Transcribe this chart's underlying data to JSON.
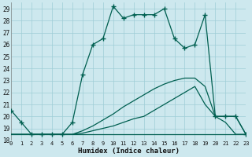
{
  "xlabel": "Humidex (Indice chaleur)",
  "xlim": [
    0,
    23
  ],
  "ylim": [
    18,
    29.5
  ],
  "yticks": [
    18,
    19,
    20,
    21,
    22,
    23,
    24,
    25,
    26,
    27,
    28,
    29
  ],
  "xticks": [
    0,
    1,
    2,
    3,
    4,
    5,
    6,
    7,
    8,
    9,
    10,
    11,
    12,
    13,
    14,
    15,
    16,
    17,
    18,
    19,
    20,
    21,
    22,
    23
  ],
  "bg_color": "#cde8ee",
  "grid_color": "#9ecdd6",
  "line_color": "#005f50",
  "lines": [
    {
      "x": [
        0,
        1,
        2,
        3,
        4,
        5,
        6,
        7,
        8,
        9,
        10,
        11,
        12,
        13,
        14,
        15,
        16,
        17,
        18,
        19,
        20,
        21,
        22,
        23
      ],
      "y": [
        20.5,
        19.5,
        18.5,
        18.5,
        18.5,
        18.5,
        19.5,
        23.5,
        26.0,
        26.5,
        29.2,
        28.2,
        28.5,
        28.5,
        28.5,
        29.0,
        26.5,
        25.7,
        26.0,
        28.5,
        20.0,
        20.0,
        20.0,
        18.5
      ],
      "marker": "+",
      "markersize": 4,
      "linewidth": 0.9
    },
    {
      "x": [
        0,
        1,
        2,
        3,
        4,
        5,
        6,
        7,
        8,
        9,
        10,
        11,
        12,
        13,
        14,
        15,
        16,
        17,
        18,
        19,
        20,
        21,
        22,
        23
      ],
      "y": [
        18.5,
        18.5,
        18.5,
        18.5,
        18.5,
        18.5,
        18.5,
        18.5,
        18.5,
        18.5,
        18.5,
        18.5,
        18.5,
        18.5,
        18.5,
        18.5,
        18.5,
        18.5,
        18.5,
        18.5,
        18.5,
        18.5,
        18.5,
        18.5
      ],
      "marker": null,
      "markersize": 0,
      "linewidth": 0.9
    },
    {
      "x": [
        0,
        1,
        2,
        3,
        4,
        5,
        6,
        7,
        8,
        9,
        10,
        11,
        12,
        13,
        14,
        15,
        16,
        17,
        18,
        19,
        20,
        21,
        22,
        23
      ],
      "y": [
        18.5,
        18.5,
        18.5,
        18.5,
        18.5,
        18.5,
        18.5,
        18.6,
        18.8,
        19.0,
        19.2,
        19.5,
        19.8,
        20.0,
        20.5,
        21.0,
        21.5,
        22.0,
        22.5,
        21.0,
        20.0,
        19.5,
        18.5,
        18.5
      ],
      "marker": null,
      "markersize": 0,
      "linewidth": 0.9
    },
    {
      "x": [
        0,
        1,
        2,
        3,
        4,
        5,
        6,
        7,
        8,
        9,
        10,
        11,
        12,
        13,
        14,
        15,
        16,
        17,
        18,
        19,
        20,
        21,
        22,
        23
      ],
      "y": [
        18.5,
        18.5,
        18.5,
        18.5,
        18.5,
        18.5,
        18.5,
        18.8,
        19.2,
        19.7,
        20.2,
        20.8,
        21.3,
        21.8,
        22.3,
        22.7,
        23.0,
        23.2,
        23.2,
        22.5,
        20.0,
        20.0,
        20.0,
        18.5
      ],
      "marker": null,
      "markersize": 0,
      "linewidth": 0.9
    }
  ]
}
